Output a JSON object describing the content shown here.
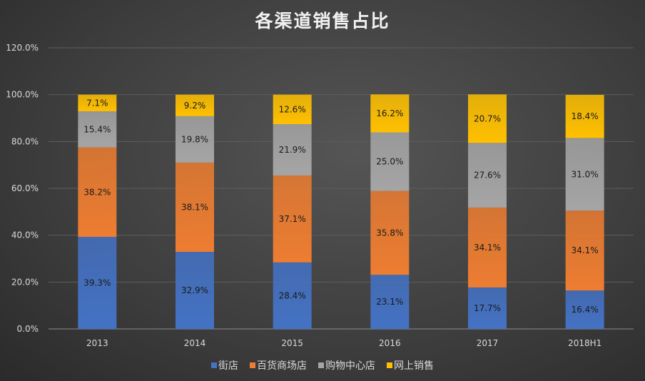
{
  "chart_data": {
    "type": "bar",
    "stacked": true,
    "title": "各渠道销售占比",
    "categories": [
      "2013",
      "2014",
      "2015",
      "2016",
      "2017",
      "2018H1"
    ],
    "series": [
      {
        "name": "街店",
        "color": "#4472c4",
        "values": [
          39.3,
          32.9,
          28.4,
          23.1,
          17.7,
          16.4
        ]
      },
      {
        "name": "百货商场店",
        "color": "#ed7d31",
        "values": [
          38.2,
          38.1,
          37.1,
          35.8,
          34.1,
          34.1
        ]
      },
      {
        "name": "购物中心店",
        "color": "#a5a5a5",
        "values": [
          15.4,
          19.8,
          21.9,
          25.0,
          27.6,
          31.0
        ]
      },
      {
        "name": "网上销售",
        "color": "#ffc000",
        "values": [
          7.1,
          9.2,
          12.6,
          16.2,
          20.7,
          18.4
        ]
      }
    ],
    "ylim": [
      0,
      120
    ],
    "yticks": [
      "0.0%",
      "20.0%",
      "40.0%",
      "60.0%",
      "80.0%",
      "100.0%",
      "120.0%"
    ],
    "grid": true,
    "legend": "bottom",
    "data_labels": true
  }
}
